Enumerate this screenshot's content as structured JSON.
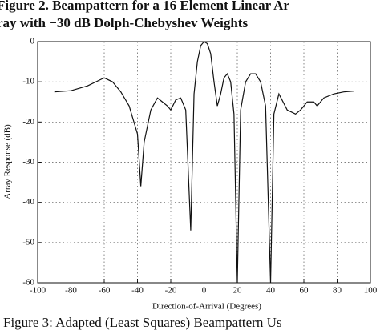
{
  "chart_data": {
    "type": "line",
    "title": "Figure 2. Beampattern for a 16 Element Linear Ar",
    "subtitle": "ray with −30 dB Dolph-Chebyshev Weights",
    "caption": "Figure 3: Adapted (Least Squares) Beampattern Us",
    "x_label": "Direction-of-Arrival (Degrees)",
    "y_label": "Array Response (dB)",
    "xlim": [
      -100,
      100
    ],
    "xticks": [
      -100,
      -80,
      -60,
      -40,
      -20,
      0,
      20,
      40,
      60,
      80,
      100
    ],
    "ylim": [
      -60,
      0
    ],
    "yticks": [
      0,
      -10,
      -20,
      -30,
      -40,
      -50,
      -60
    ],
    "grid": true,
    "x": [
      -90,
      -80,
      -70,
      -60,
      -55,
      -50,
      -45,
      -40,
      -38,
      -36,
      -32,
      -28,
      -25,
      -22,
      -20,
      -17,
      -14,
      -11,
      -8,
      -6,
      -4,
      -2,
      0,
      2,
      4,
      6,
      8,
      10,
      12,
      14,
      16,
      18,
      20,
      22,
      25,
      28,
      31,
      34,
      37,
      40,
      42,
      45,
      50,
      55,
      58,
      62,
      66,
      68,
      72,
      78,
      84,
      90
    ],
    "series": [
      {
        "color": "#111111",
        "values": [
          -12.5,
          -12.2,
          -11,
          -9,
          -10,
          -12.5,
          -16,
          -23,
          -36,
          -25,
          -17,
          -14,
          -15,
          -16,
          -17,
          -14.5,
          -14,
          -17,
          -47,
          -13,
          -5,
          -1,
          0,
          -0.5,
          -3,
          -10,
          -16,
          -13,
          -9,
          -8,
          -10,
          -18,
          -60,
          -17,
          -10,
          -8,
          -8,
          -10,
          -16,
          -60,
          -18,
          -13,
          -17,
          -18,
          -17,
          -15,
          -15,
          -16,
          -14,
          -13,
          -12.5,
          -12.3
        ]
      }
    ]
  }
}
